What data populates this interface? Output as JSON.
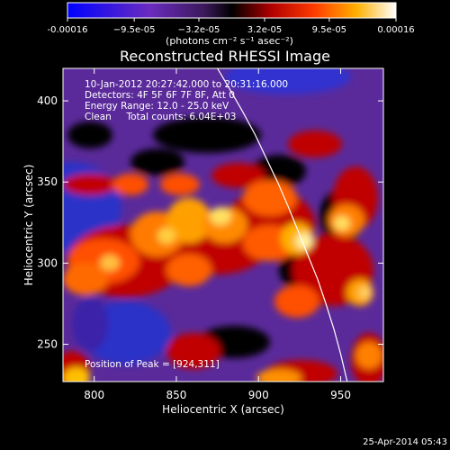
{
  "colorbar": {
    "tick_labels": [
      "-0.00016",
      "−9.5e-05",
      "−3.2e-05",
      "3.2e-05",
      "9.5e-05",
      "0.00016"
    ],
    "tick_values": [
      -0.00016,
      -9.5e-05,
      -3.2e-05,
      3.2e-05,
      9.5e-05,
      0.00016
    ],
    "range": [
      -0.00016,
      0.00016
    ],
    "units_label": "(photons cm⁻² s⁻¹ asec⁻²)",
    "colormap": [
      "#0000ff",
      "#5a26c8",
      "#7a3aa6",
      "#000000",
      "#a80000",
      "#ff1a00",
      "#ff8a00",
      "#ffd600",
      "#ffffff"
    ]
  },
  "chart_data": {
    "type": "heatmap",
    "title": "Reconstructed RHESSI Image",
    "xlabel": "Heliocentric X (arcsec)",
    "ylabel": "Heliocentric Y (arcsec)",
    "xlim": [
      781,
      976
    ],
    "ylim": [
      227,
      420
    ],
    "x_ticks": [
      800,
      850,
      900,
      950
    ],
    "y_ticks": [
      250,
      300,
      350,
      400
    ],
    "limb_curve": {
      "x": [
        875,
        882,
        890,
        898,
        905,
        912,
        918,
        924,
        930,
        936,
        941,
        946,
        950,
        954
      ],
      "y": [
        420,
        408,
        394,
        379,
        364,
        349,
        335,
        320,
        305,
        290,
        275,
        259,
        244,
        227
      ]
    },
    "peak_label": "Position of Peak = [924,311]",
    "peak_position": [
      924,
      311
    ]
  },
  "info": {
    "line1": "10-Jan-2012 20:27:42.000 to 20:31:16.000",
    "line2": "Detectors: 4F 5F 6F 7F 8F, Att 0",
    "line3": "Energy Range: 12.0 - 25.0 keV",
    "line4": "Clean     Total counts: 6.04E+03"
  },
  "footer": {
    "date": "25-Apr-2014 05:43"
  }
}
